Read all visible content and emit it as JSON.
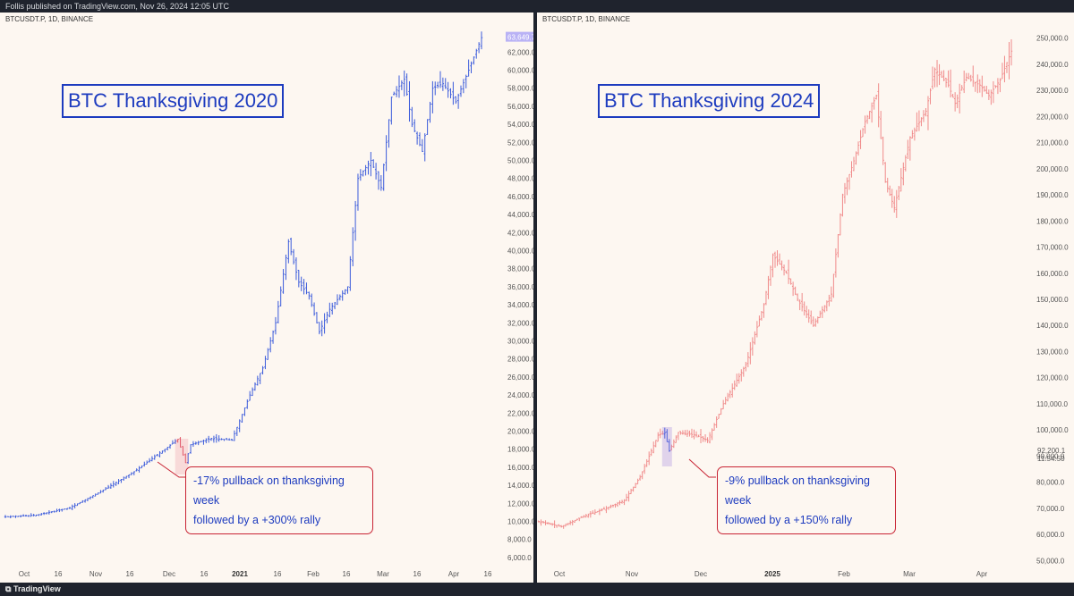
{
  "header": {
    "published": "Follis published on TradingView.com, Nov 26, 2024 12:05 UTC"
  },
  "footer": {
    "brand": "TradingView"
  },
  "colors": {
    "left_candles": "#3b5bdb",
    "right_candles": "#f08a8a",
    "annotation_blue": "#1d3bbf",
    "annotation_red": "#c82333",
    "price_tag": "#b9b2f5"
  },
  "chart_data": [
    {
      "type": "candlestick",
      "symbol": "BTCUSDT.P, 1D, BINANCE",
      "title": "BTC Thanksgiving 2020",
      "annotation_line1": "-17% pullback on thanksgiving week",
      "annotation_line2": "followed by a +300% rally",
      "current_price": "63,649.7",
      "ylim": [
        5000,
        65000
      ],
      "y_ticks": [
        "62,000.0",
        "60,000.0",
        "58,000.0",
        "56,000.0",
        "54,000.0",
        "52,000.0",
        "50,000.0",
        "48,000.0",
        "46,000.0",
        "44,000.0",
        "42,000.0",
        "40,000.0",
        "38,000.0",
        "36,000.0",
        "34,000.0",
        "32,000.0",
        "30,000.0",
        "28,000.0",
        "26,000.0",
        "24,000.0",
        "22,000.0",
        "20,000.0",
        "18,000.0",
        "16,000.0",
        "14,000.0",
        "12,000.0",
        "10,000.0",
        "8,000.0",
        "6,000.0"
      ],
      "x_ticks": [
        "Oct",
        "16",
        "Nov",
        "16",
        "Dec",
        "16",
        "2021",
        "16",
        "Feb",
        "16",
        "Mar",
        "16",
        "Apr",
        "16"
      ],
      "x_ticks_bold": [
        "2021"
      ],
      "path": [
        [
          0,
          10500
        ],
        [
          12,
          10700
        ],
        [
          25,
          11500
        ],
        [
          37,
          13300
        ],
        [
          50,
          15500
        ],
        [
          62,
          18000
        ],
        [
          67,
          19100
        ],
        [
          70,
          16500
        ],
        [
          72,
          18500
        ],
        [
          80,
          19200
        ],
        [
          88,
          19000
        ],
        [
          95,
          24000
        ],
        [
          100,
          27000
        ],
        [
          105,
          32000
        ],
        [
          110,
          41000
        ],
        [
          114,
          36500
        ],
        [
          118,
          35000
        ],
        [
          122,
          31000
        ],
        [
          126,
          33500
        ],
        [
          133,
          36000
        ],
        [
          137,
          48000
        ],
        [
          142,
          50000
        ],
        [
          146,
          47000
        ],
        [
          150,
          57000
        ],
        [
          155,
          59000
        ],
        [
          158,
          54000
        ],
        [
          162,
          51000
        ],
        [
          166,
          58000
        ],
        [
          170,
          58500
        ],
        [
          175,
          56500
        ],
        [
          180,
          60000
        ],
        [
          185,
          63600
        ]
      ]
    },
    {
      "type": "candlestick",
      "symbol": "BTCUSDT.P, 1D, BINANCE",
      "title": "BTC Thanksgiving 2024",
      "annotation_line1": "-9% pullback on thanksgiving week",
      "annotation_line2": "followed by a +150% rally",
      "current_price": "92,200.1",
      "countdown": "11:54:50",
      "ylim": [
        45000,
        255000
      ],
      "y_ticks": [
        "250,000.0",
        "240,000.0",
        "230,000.0",
        "220,000.0",
        "210,000.0",
        "200,000.0",
        "190,000.0",
        "180,000.0",
        "170,000.0",
        "160,000.0",
        "150,000.0",
        "140,000.0",
        "130,000.0",
        "120,000.0",
        "110,000.0",
        "100,000.0",
        "90,000.0",
        "80,000.0",
        "70,000.0",
        "60,000.0",
        "50,000.0"
      ],
      "x_ticks": [
        "Oct",
        "Nov",
        "Dec",
        "2025",
        "Feb",
        "Mar",
        "Apr"
      ],
      "x_ticks_bold": [
        "2025"
      ],
      "path": [
        [
          0,
          65000
        ],
        [
          10,
          63000
        ],
        [
          20,
          67000
        ],
        [
          30,
          70000
        ],
        [
          38,
          73000
        ],
        [
          45,
          82000
        ],
        [
          50,
          92000
        ],
        [
          53,
          98000
        ],
        [
          56,
          99000
        ],
        [
          58,
          92000
        ],
        [
          62,
          99000
        ],
        [
          70,
          98000
        ],
        [
          75,
          96000
        ],
        [
          82,
          110000
        ],
        [
          92,
          125000
        ],
        [
          100,
          148000
        ],
        [
          104,
          167000
        ],
        [
          110,
          160000
        ],
        [
          115,
          150000
        ],
        [
          122,
          140000
        ],
        [
          130,
          152000
        ],
        [
          135,
          190000
        ],
        [
          140,
          203000
        ],
        [
          145,
          218000
        ],
        [
          150,
          228000
        ],
        [
          154,
          195000
        ],
        [
          158,
          185000
        ],
        [
          165,
          212000
        ],
        [
          172,
          222000
        ],
        [
          176,
          238000
        ],
        [
          182,
          232000
        ],
        [
          185,
          225000
        ],
        [
          190,
          235000
        ],
        [
          196,
          232000
        ],
        [
          200,
          228000
        ],
        [
          205,
          234000
        ],
        [
          210,
          245000
        ]
      ]
    }
  ]
}
